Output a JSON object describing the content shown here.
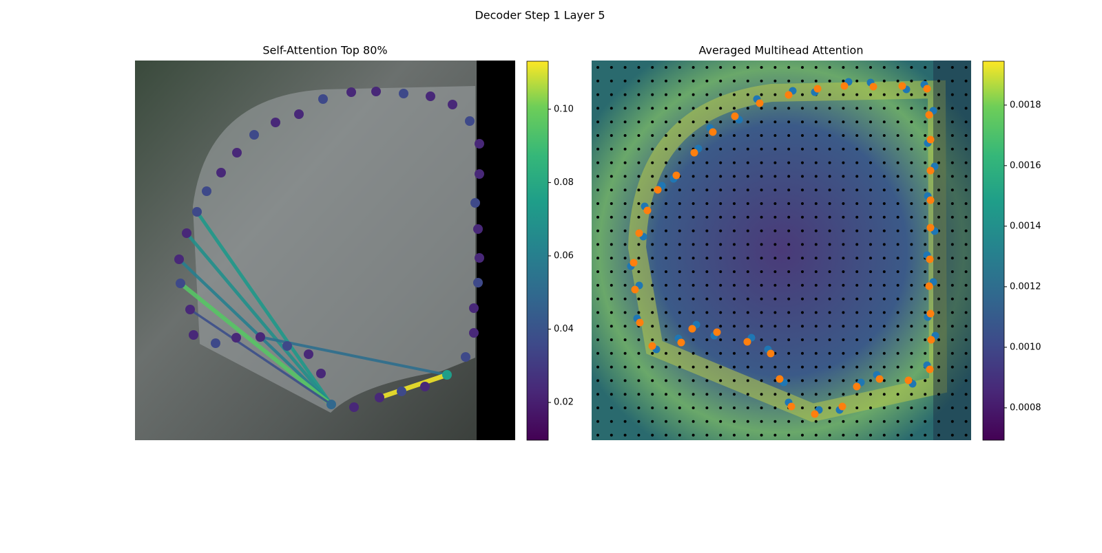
{
  "title": "Decoder Step 1 Layer 5",
  "chart_data": [
    {
      "type": "attention-edges",
      "title": "Self-Attention Top 80%",
      "values": [
        0.072,
        0.068,
        0.06,
        0.095,
        0.038,
        0.052,
        0.112
      ],
      "clim": [
        0.0097,
        0.1131
      ],
      "cticks": [
        0.02,
        0.04,
        0.06,
        0.08,
        {
          "value": 0.1,
          "label": "0.10"
        }
      ]
    },
    {
      "type": "attention-heatmap",
      "title": "Averaged Multihead Attention",
      "clim": [
        0.000693,
        0.001945
      ],
      "cticks": [
        0.0008,
        {
          "value": 0.001,
          "label": "0.0010"
        },
        0.0012,
        0.0014,
        0.0016,
        0.0018
      ]
    }
  ]
}
